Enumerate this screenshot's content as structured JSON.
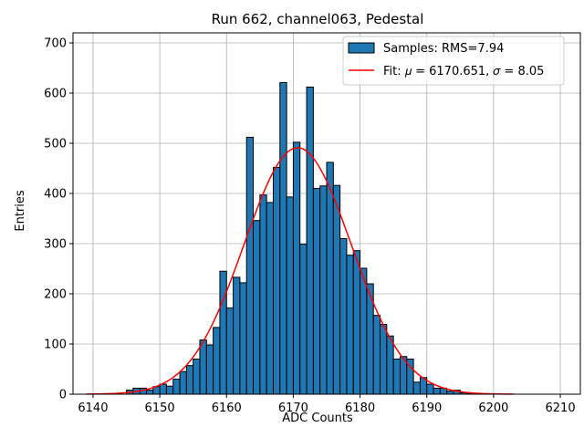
{
  "chart_data": {
    "type": "histogram",
    "title": "Run 662, channel063, Pedestal",
    "xlabel": "ADC Counts",
    "ylabel": "Entries",
    "xlim": [
      6137,
      6213
    ],
    "ylim": [
      0,
      720
    ],
    "xticks": [
      6140,
      6150,
      6160,
      6170,
      6180,
      6190,
      6200,
      6210
    ],
    "yticks": [
      0,
      100,
      200,
      300,
      400,
      500,
      600,
      700
    ],
    "grid": true,
    "legend_position": "top-right",
    "bar_color": "#1f77b4",
    "edge_color": "#000000",
    "fit_color": "#ff0000",
    "bin_width": 1,
    "bins_start": [
      6145,
      6146,
      6147,
      6148,
      6149,
      6150,
      6151,
      6152,
      6153,
      6154,
      6155,
      6156,
      6157,
      6158,
      6159,
      6160,
      6161,
      6162,
      6163,
      6164,
      6165,
      6166,
      6167,
      6168,
      6169,
      6170,
      6171,
      6172,
      6173,
      6174,
      6175,
      6176,
      6177,
      6178,
      6179,
      6180,
      6181,
      6182,
      6183,
      6184,
      6185,
      6186,
      6187,
      6188,
      6189,
      6190,
      6191,
      6192,
      6193,
      6194,
      6195,
      6196
    ],
    "counts": [
      8,
      12,
      12,
      8,
      15,
      20,
      16,
      30,
      45,
      57,
      70,
      108,
      98,
      133,
      245,
      172,
      233,
      222,
      512,
      346,
      397,
      382,
      452,
      621,
      393,
      502,
      299,
      612,
      410,
      415,
      462,
      416,
      310,
      277,
      286,
      251,
      220,
      157,
      139,
      116,
      70,
      75,
      70,
      24,
      33,
      20,
      12,
      12,
      6,
      8,
      3,
      2
    ],
    "series": [
      {
        "name": "Samples: RMS=7.94",
        "kind": "bars"
      },
      {
        "name": "Fit: 𝜇 = 6170.651, 𝜎 = 8.05",
        "kind": "gaussian-fit",
        "mu": 6170.651,
        "sigma": 8.05,
        "amplitude": 491,
        "x_range": [
          6139,
          6203
        ]
      }
    ]
  }
}
